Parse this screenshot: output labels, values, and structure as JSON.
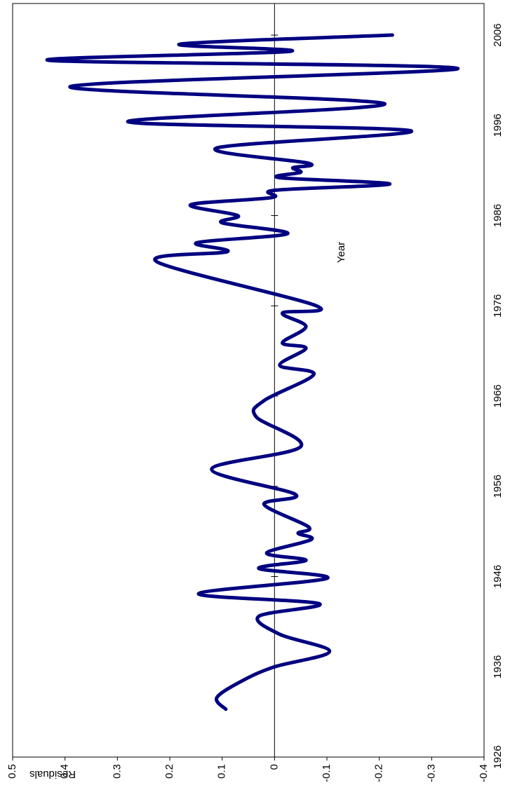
{
  "chart_data": {
    "type": "line",
    "x_label": "Year",
    "y_label": "Residuals",
    "x": [
      1931.3,
      1932.6,
      1934.5,
      1936.0,
      1937.7,
      1939.6,
      1941.6,
      1943.0,
      1944.1,
      1945.8,
      1946.9,
      1947.8,
      1948.6,
      1950.1,
      1950.8,
      1951.5,
      1954.0,
      1955.1,
      1957.9,
      1960.4,
      1963.7,
      1965.5,
      1968.4,
      1969.4,
      1971.3,
      1971.9,
      1973.7,
      1975.2,
      1976.0,
      1980.9,
      1982.0,
      1983.0,
      1984.0,
      1985.2,
      1986.0,
      1987.2,
      1988.0,
      1988.8,
      1989.5,
      1990.2,
      1990.8,
      1991.3,
      1991.8,
      1993.5,
      1995.4,
      1996.4,
      1998.4,
      2000.3,
      2002.3,
      2003.2,
      2004.2,
      2005.0,
      2006.0
    ],
    "series": [
      {
        "name": "Residuals",
        "color": "#000080",
        "values": [
          0.093,
          0.11,
          0.06,
          0.0,
          -0.105,
          -0.01,
          0.03,
          -0.085,
          0.145,
          -0.1,
          0.03,
          -0.06,
          0.015,
          -0.07,
          -0.045,
          -0.065,
          0.02,
          -0.04,
          0.12,
          -0.05,
          0.035,
          0.02,
          -0.075,
          -0.01,
          -0.06,
          -0.015,
          -0.06,
          -0.015,
          -0.08,
          0.225,
          0.09,
          0.148,
          -0.025,
          0.1,
          0.07,
          0.16,
          0.005,
          0.0,
          -0.22,
          -0.01,
          -0.05,
          -0.035,
          -0.065,
          0.11,
          -0.26,
          0.28,
          -0.21,
          0.39,
          -0.35,
          0.43,
          -0.03,
          0.18,
          -0.225
        ]
      }
    ],
    "xlim": [
      1926,
      2009.5
    ],
    "xticks": [
      1926,
      1936,
      1946,
      1956,
      1966,
      1976,
      1986,
      1996,
      2006
    ],
    "ylim": [
      -0.4,
      0.5
    ],
    "yticks": [
      -0.4,
      -0.3,
      -0.2,
      -0.1,
      0,
      0.1,
      0.2,
      0.3,
      0.4,
      0.5
    ]
  }
}
